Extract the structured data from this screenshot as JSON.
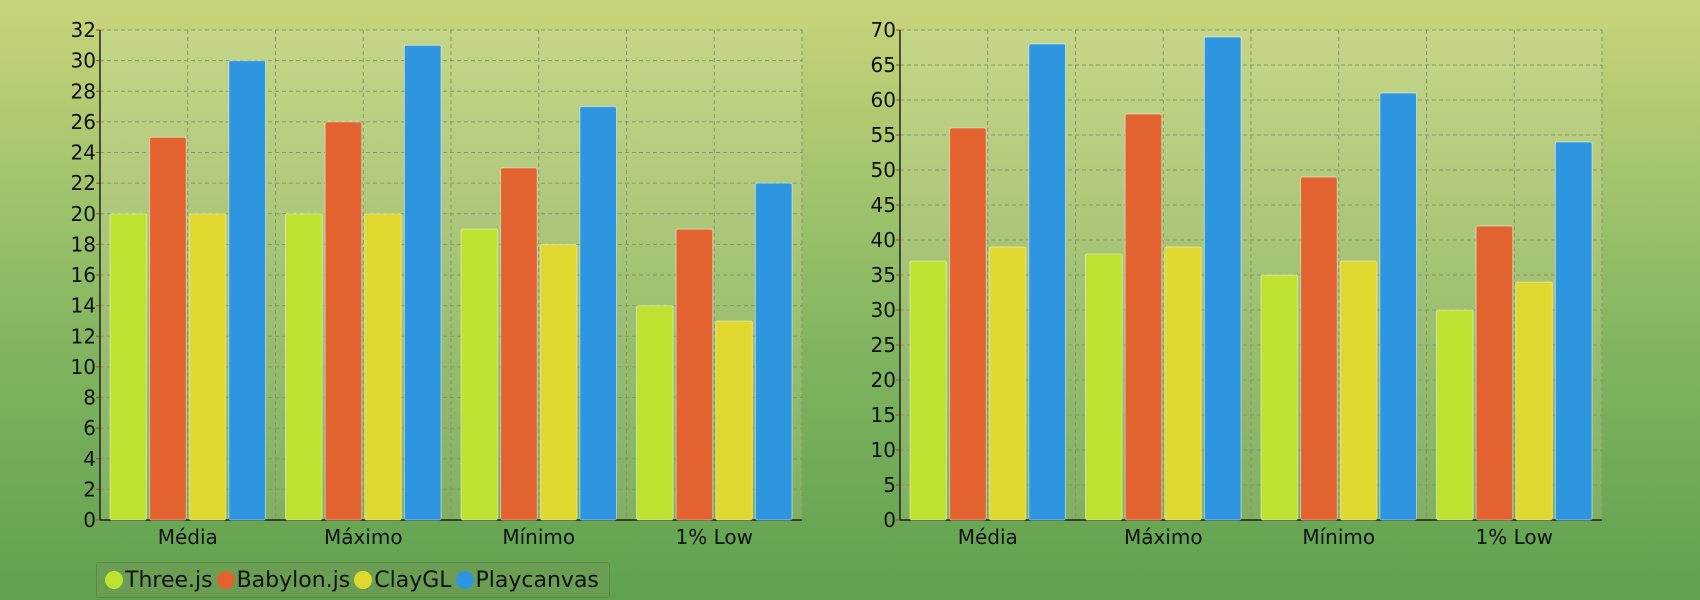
{
  "chart_data": [
    {
      "type": "bar",
      "categories": [
        "Média",
        "Máximo",
        "Mínimo",
        "1% Low"
      ],
      "ylim": [
        0,
        32
      ],
      "ytick_step": 2,
      "grid": true,
      "series": [
        {
          "name": "Three.js",
          "color": "#bde22f",
          "values": [
            20,
            20,
            19,
            14
          ]
        },
        {
          "name": "Babylon.js",
          "color": "#e2632f",
          "values": [
            25,
            26,
            23,
            19
          ]
        },
        {
          "name": "ClayGL",
          "color": "#e0d82f",
          "values": [
            20,
            20,
            18,
            13
          ]
        },
        {
          "name": "Playcanvas",
          "color": "#2e95e0",
          "values": [
            30,
            31,
            27,
            22
          ]
        }
      ]
    },
    {
      "type": "bar",
      "categories": [
        "Média",
        "Máximo",
        "Mínimo",
        "1% Low"
      ],
      "ylim": [
        0,
        70
      ],
      "ytick_step": 5,
      "grid": true,
      "series": [
        {
          "name": "Three.js",
          "color": "#bde22f",
          "values": [
            37,
            38,
            35,
            30
          ]
        },
        {
          "name": "Babylon.js",
          "color": "#e2632f",
          "values": [
            56,
            58,
            49,
            42
          ]
        },
        {
          "name": "ClayGL",
          "color": "#e0d82f",
          "values": [
            39,
            39,
            37,
            34
          ]
        },
        {
          "name": "Playcanvas",
          "color": "#2e95e0",
          "values": [
            68,
            69,
            61,
            54
          ]
        }
      ]
    }
  ],
  "legend": {
    "placement": "bottom-left",
    "items": [
      {
        "label": "Three.js",
        "color": "#bde22f"
      },
      {
        "label": "Babylon.js",
        "color": "#e2632f"
      },
      {
        "label": "ClayGL",
        "color": "#e0d82f"
      },
      {
        "label": "Playcanvas",
        "color": "#2e95e0"
      }
    ]
  }
}
